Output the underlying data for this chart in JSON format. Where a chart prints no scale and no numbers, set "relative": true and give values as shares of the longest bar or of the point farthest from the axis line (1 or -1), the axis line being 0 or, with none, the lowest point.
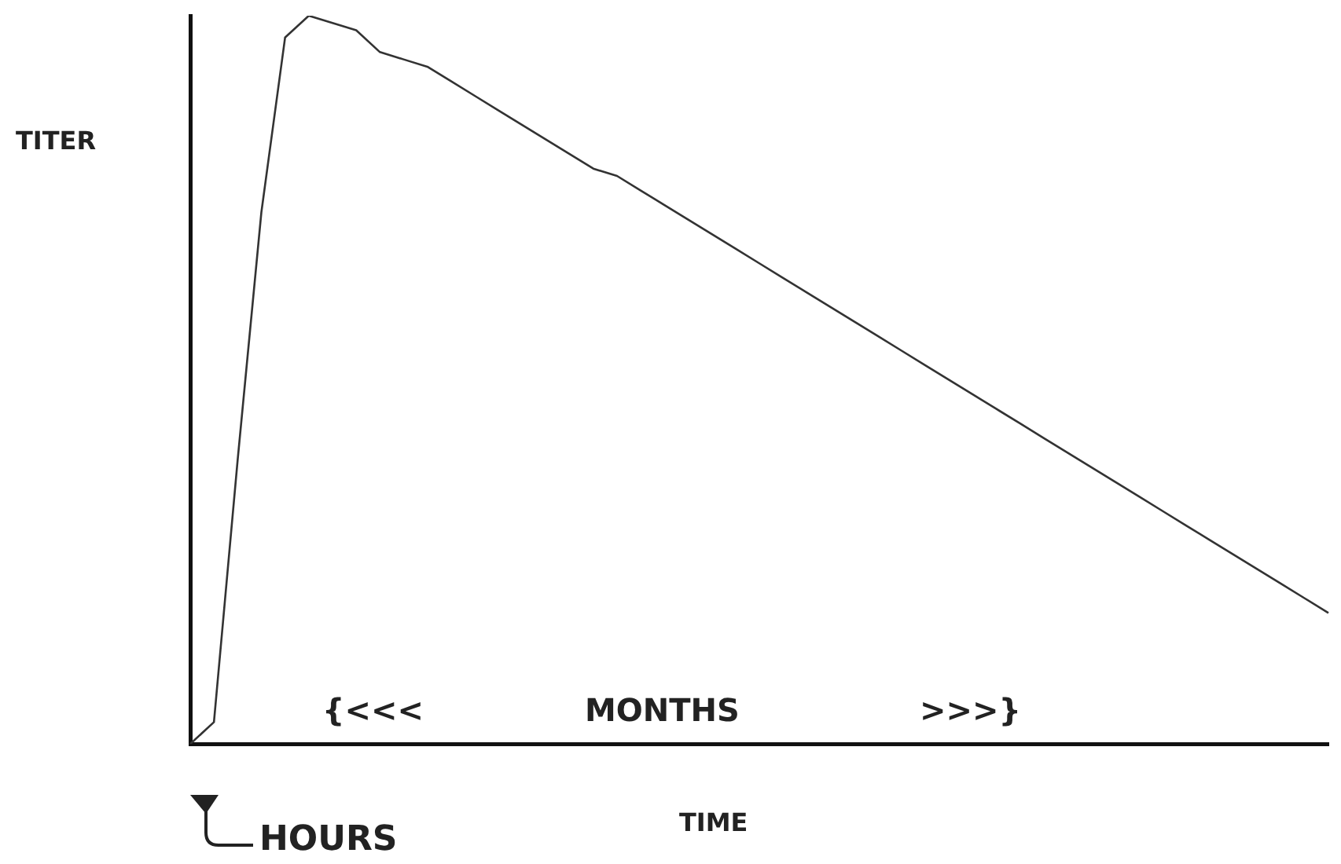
{
  "chart_data": {
    "type": "line",
    "relative": true,
    "ylabel": "TITER",
    "xlabel": "TIME",
    "annotations": [
      "{<<<",
      "MONTHS",
      ">>>}",
      "HOURS"
    ],
    "categories": [
      null,
      null,
      null,
      null,
      null,
      null,
      null,
      null,
      null,
      null,
      null,
      null,
      null,
      null,
      null,
      null,
      null,
      null,
      null,
      null,
      null,
      null,
      null,
      null,
      null,
      null,
      null,
      null,
      null,
      null,
      null,
      null,
      null,
      null,
      null,
      null,
      null,
      null,
      null,
      null,
      null,
      null,
      null,
      null,
      null,
      null,
      null,
      null,
      null
    ],
    "series": [
      {
        "color": "#333333",
        "values": [
          0,
          0.03,
          0.39,
          0.73,
          0.97,
          1,
          0.99,
          0.98,
          0.95,
          0.94,
          0.93,
          0.91,
          0.89,
          0.87,
          0.85,
          0.83,
          0.81,
          0.79,
          0.78,
          0.76,
          0.74,
          0.72,
          0.7,
          0.68,
          0.66,
          0.64,
          0.62,
          0.6,
          0.58,
          0.56,
          0.54,
          0.52,
          0.5,
          0.48,
          0.46,
          0.44,
          0.42,
          0.4,
          0.38,
          0.36,
          0.34,
          0.32,
          0.3,
          0.28,
          0.26,
          0.24,
          0.22,
          0.2,
          0.18
        ]
      }
    ],
    "grid": false,
    "legend": false
  }
}
